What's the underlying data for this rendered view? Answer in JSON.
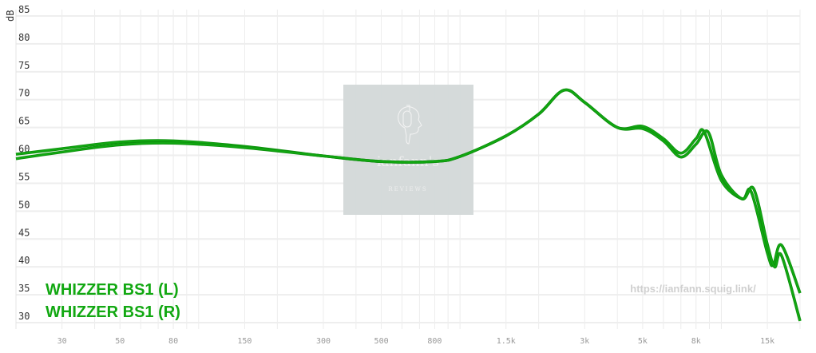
{
  "chart_data": {
    "type": "line",
    "title": "",
    "xlabel": "",
    "ylabel": "dB",
    "xscale": "log",
    "xlim": [
      20,
      20000
    ],
    "ylim": [
      30,
      85
    ],
    "grid": true,
    "y_ticks": [
      "85",
      "80",
      "75",
      "70",
      "65",
      "60",
      "55",
      "50",
      "45",
      "40",
      "35",
      "30"
    ],
    "y_tick_values": [
      85,
      80,
      75,
      70,
      65,
      60,
      55,
      50,
      45,
      40,
      35,
      30
    ],
    "x_ticks": [
      "30",
      "50",
      "80",
      "150",
      "300",
      "500",
      "800",
      "1.5k",
      "3k",
      "5k",
      "8k",
      "15k"
    ],
    "x_tick_values": [
      30,
      50,
      80,
      150,
      300,
      500,
      800,
      1500,
      3000,
      5000,
      8000,
      15000
    ],
    "legend_placement": "bottom-left",
    "series": [
      {
        "name": "WHIZZER BS1 (L)",
        "color": "#12a812",
        "x": [
          20,
          30,
          50,
          80,
          150,
          300,
          500,
          800,
          1000,
          1500,
          2000,
          2500,
          3000,
          4000,
          5000,
          6000,
          7000,
          8000,
          8600,
          10000,
          12000,
          13000,
          15000,
          15800,
          17000,
          20000
        ],
        "y": [
          60.2,
          61.2,
          62.4,
          62.6,
          61.6,
          59.9,
          58.9,
          58.9,
          59.8,
          63.5,
          67.4,
          71.7,
          69.5,
          65.0,
          65.2,
          63.0,
          60.4,
          63.0,
          64.2,
          55.5,
          52.2,
          53.5,
          42.5,
          40.3,
          43.9,
          35.3
        ]
      },
      {
        "name": "WHIZZER BS1 (R)",
        "color": "#12a812",
        "x": [
          20,
          30,
          50,
          80,
          150,
          300,
          500,
          800,
          1000,
          1500,
          2000,
          2500,
          3000,
          4000,
          5000,
          6000,
          7000,
          8000,
          8900,
          10000,
          12000,
          13300,
          15000,
          16000,
          17000,
          20000
        ],
        "y": [
          59.4,
          60.6,
          61.9,
          62.2,
          61.4,
          59.9,
          58.9,
          58.9,
          59.8,
          63.5,
          67.4,
          71.7,
          69.5,
          65.0,
          64.8,
          62.6,
          59.7,
          62.0,
          64.2,
          56.5,
          52.2,
          54.0,
          44.0,
          40.0,
          42.0,
          30.3
        ]
      }
    ]
  },
  "watermark": {
    "brand": "ianfann's",
    "sub": "REVIEWS",
    "url": "https://ianfann.squig.link/"
  }
}
